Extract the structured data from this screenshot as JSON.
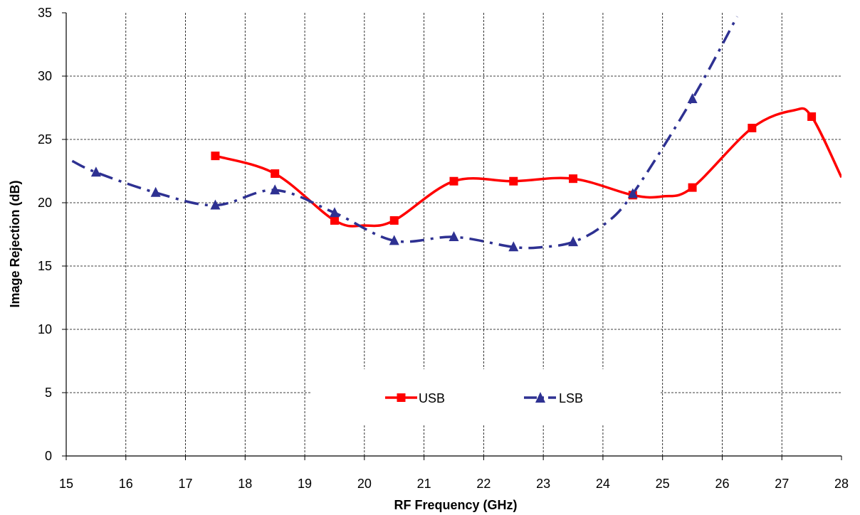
{
  "chart_data": {
    "type": "line",
    "title": "",
    "xlabel": "RF Frequency (GHz)",
    "ylabel": "Image Rejection (dB)",
    "xlim": [
      15,
      28
    ],
    "ylim": [
      0,
      35
    ],
    "x_ticks": [
      "15",
      "16",
      "17",
      "18",
      "19",
      "20",
      "21",
      "22",
      "23",
      "24",
      "25",
      "26",
      "27",
      "28"
    ],
    "y_ticks": [
      "0",
      "5",
      "10",
      "15",
      "20",
      "25",
      "30",
      "35"
    ],
    "grid": true,
    "legend_position": "bottom-center",
    "series": [
      {
        "name": "USB",
        "color": "#ff0000",
        "marker": "square",
        "line_style": "solid",
        "x": [
          17.5,
          18.5,
          19.5,
          20.5,
          21.5,
          22.5,
          23.5,
          24.5,
          25.5,
          26.5,
          27.5
        ],
        "y": [
          23.7,
          22.3,
          18.6,
          18.6,
          21.7,
          21.7,
          21.9,
          20.6,
          21.2,
          25.9,
          26.8
        ],
        "curve_x": [
          17.5,
          18.5,
          19.5,
          20.0,
          20.5,
          21.5,
          22.5,
          23.5,
          24.5,
          25.0,
          25.5,
          26.5,
          27.2,
          27.5,
          28.0
        ],
        "curve_y": [
          23.7,
          22.3,
          18.6,
          18.2,
          18.6,
          21.7,
          21.7,
          21.9,
          20.6,
          20.5,
          21.2,
          25.9,
          27.3,
          26.8,
          22.0
        ]
      },
      {
        "name": "LSB",
        "color": "#2e3192",
        "marker": "triangle",
        "line_style": "dash-dot",
        "x": [
          15.5,
          16.5,
          17.5,
          18.5,
          19.5,
          20.5,
          21.5,
          22.5,
          23.5,
          24.5,
          25.5
        ],
        "y": [
          22.4,
          20.8,
          19.8,
          21.0,
          19.2,
          17.0,
          17.3,
          16.5,
          16.9,
          20.7,
          28.2
        ],
        "curve_x": [
          15.1,
          15.5,
          16.5,
          17.5,
          18.5,
          19.5,
          20.5,
          21.5,
          22.5,
          23.0,
          23.5,
          24.0,
          24.5,
          25.5,
          26.25
        ],
        "curve_y": [
          23.3,
          22.4,
          20.8,
          19.8,
          21.0,
          19.2,
          17.0,
          17.3,
          16.5,
          16.5,
          16.9,
          18.2,
          20.7,
          28.2,
          34.7
        ]
      }
    ]
  },
  "legend": {
    "usb_label": "USB",
    "lsb_label": "LSB"
  }
}
